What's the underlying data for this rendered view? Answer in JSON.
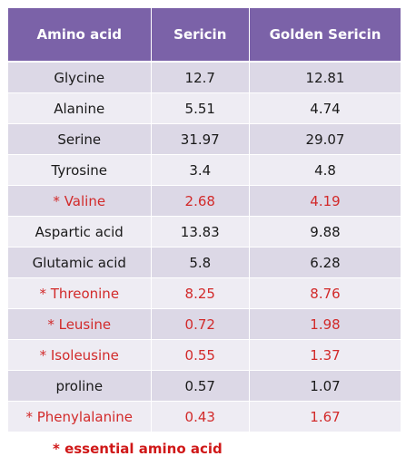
{
  "table": {
    "headers": [
      "Amino acid",
      "Sericin",
      "Golden Sericin"
    ],
    "rows": [
      {
        "label": "Glycine",
        "sericin": "12.7",
        "golden": "12.81",
        "essential": false
      },
      {
        "label": "Alanine",
        "sericin": "5.51",
        "golden": "4.74",
        "essential": false
      },
      {
        "label": "Serine",
        "sericin": "31.97",
        "golden": "29.07",
        "essential": false
      },
      {
        "label": "Tyrosine",
        "sericin": "3.4",
        "golden": "4.8",
        "essential": false
      },
      {
        "label": "* Valine",
        "sericin": "2.68",
        "golden": "4.19",
        "essential": true
      },
      {
        "label": "Aspartic acid",
        "sericin": "13.83",
        "golden": "9.88",
        "essential": false
      },
      {
        "label": "Glutamic acid",
        "sericin": "5.8",
        "golden": "6.28",
        "essential": false
      },
      {
        "label": "* Threonine",
        "sericin": "8.25",
        "golden": "8.76",
        "essential": true
      },
      {
        "label": "* Leusine",
        "sericin": "0.72",
        "golden": "1.98",
        "essential": true
      },
      {
        "label": "* Isoleusine",
        "sericin": "0.55",
        "golden": "1.37",
        "essential": true
      },
      {
        "label": "proline",
        "sericin": "0.57",
        "golden": "1.07",
        "essential": false
      },
      {
        "label": "* Phenylalanine",
        "sericin": "0.43",
        "golden": "1.67",
        "essential": true
      }
    ]
  },
  "footnote": "* essential amino acid",
  "colors": {
    "header_bg": "#7b62a8",
    "row_odd_bg": "#dcd8e6",
    "row_even_bg": "#eeecf3",
    "essential_text": "#d22a2a"
  }
}
